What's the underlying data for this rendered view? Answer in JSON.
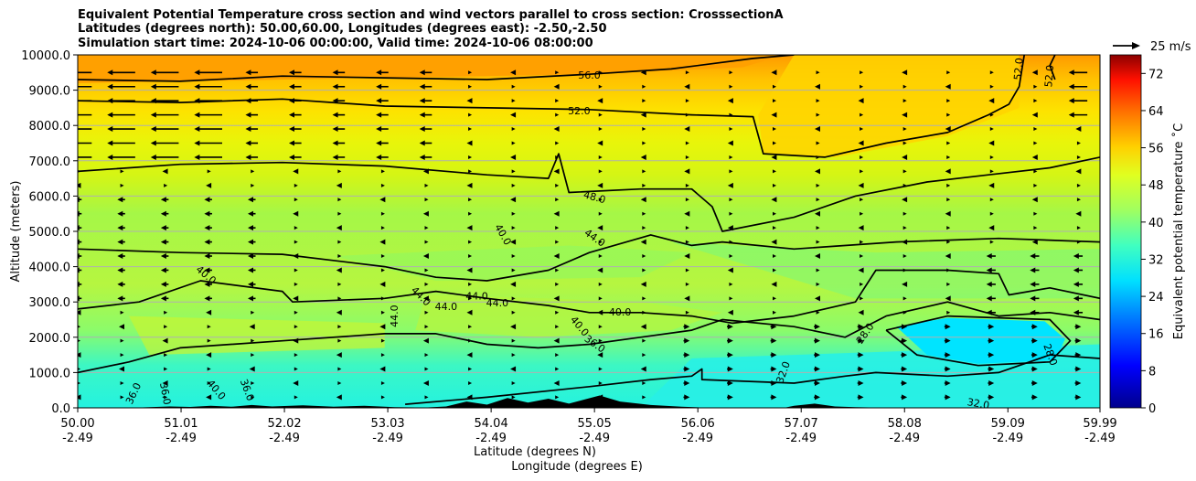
{
  "chart_data": {
    "type": "heatmap",
    "title": [
      "Equivalent Potential Temperature cross section and wind vectors parallel to cross section: CrosssectionA",
      "Latitudes (degrees north): 50.00,60.00, Longitudes (degrees east): -2.50,-2.50",
      "Simulation start time: 2024-10-06 00:00:00, Valid time: 2024-10-06 08:00:00"
    ],
    "ylabel": "Altitude (meters)",
    "xlabel": [
      "Latitude (degrees N)",
      "Longitude (degrees E)"
    ],
    "x_ticks": [
      {
        "lat": "50.00",
        "lon": "-2.49",
        "value": 50.0
      },
      {
        "lat": "51.01",
        "lon": "-2.49",
        "value": 51.01
      },
      {
        "lat": "52.02",
        "lon": "-2.49",
        "value": 52.02
      },
      {
        "lat": "53.03",
        "lon": "-2.49",
        "value": 53.03
      },
      {
        "lat": "54.04",
        "lon": "-2.49",
        "value": 54.04
      },
      {
        "lat": "55.05",
        "lon": "-2.49",
        "value": 55.05
      },
      {
        "lat": "56.06",
        "lon": "-2.49",
        "value": 56.06
      },
      {
        "lat": "57.07",
        "lon": "-2.49",
        "value": 57.07
      },
      {
        "lat": "58.08",
        "lon": "-2.49",
        "value": 58.08
      },
      {
        "lat": "59.09",
        "lon": "-2.49",
        "value": 59.09
      },
      {
        "lat": "59.99",
        "lon": "-2.49",
        "value": 59.99
      }
    ],
    "y_ticks": [
      "0.0",
      "1000.0",
      "2000.0",
      "3000.0",
      "4000.0",
      "5000.0",
      "6000.0",
      "7000.0",
      "8000.0",
      "9000.0",
      "10000.0"
    ],
    "xlim": [
      50.0,
      59.99
    ],
    "ylim": [
      0,
      10000
    ],
    "grid": "horizontal",
    "colorbar": {
      "label": "Equivalent potential temperature ˚C",
      "min": 0,
      "max": 76,
      "ticks": [
        "0",
        "8",
        "16",
        "24",
        "32",
        "40",
        "48",
        "56",
        "64",
        "72"
      ]
    },
    "quiver_key": {
      "label": "25 m/s",
      "value": 25
    },
    "contours": [
      {
        "level": 56.0,
        "label": "56.0",
        "points": [
          [
            50.0,
            9300
          ],
          [
            51.0,
            9250
          ],
          [
            52.0,
            9400
          ],
          [
            53.0,
            9350
          ],
          [
            54.0,
            9300
          ],
          [
            55.0,
            9450
          ],
          [
            55.8,
            9600
          ],
          [
            56.6,
            9900
          ],
          [
            57.0,
            10000
          ]
        ]
      },
      {
        "level": 52.0,
        "label": "52.0",
        "points": [
          [
            50.0,
            8700
          ],
          [
            51.0,
            8650
          ],
          [
            52.0,
            8750
          ],
          [
            53.0,
            8550
          ],
          [
            54.0,
            8500
          ],
          [
            55.0,
            8450
          ],
          [
            56.0,
            8300
          ],
          [
            56.6,
            8250
          ],
          [
            56.7,
            7200
          ],
          [
            57.3,
            7100
          ],
          [
            57.9,
            7500
          ],
          [
            58.5,
            7800
          ],
          [
            58.9,
            8300
          ],
          [
            59.1,
            8600
          ],
          [
            59.2,
            9100
          ],
          [
            59.25,
            10000
          ]
        ]
      },
      {
        "level": 52.0,
        "label": "52.0",
        "points": [
          [
            59.55,
            10000
          ],
          [
            59.5,
            9700
          ],
          [
            59.55,
            9300
          ]
        ]
      },
      {
        "level": 48.0,
        "label": "48.0",
        "points": [
          [
            50.0,
            6700
          ],
          [
            51.0,
            6900
          ],
          [
            52.0,
            6950
          ],
          [
            53.0,
            6850
          ],
          [
            54.0,
            6600
          ],
          [
            54.6,
            6500
          ],
          [
            54.7,
            7200
          ],
          [
            54.8,
            6100
          ],
          [
            55.5,
            6200
          ],
          [
            56.0,
            6200
          ],
          [
            56.2,
            5700
          ],
          [
            56.3,
            5000
          ],
          [
            57.0,
            5400
          ],
          [
            57.6,
            6000
          ],
          [
            58.3,
            6400
          ],
          [
            58.9,
            6600
          ],
          [
            59.5,
            6800
          ],
          [
            59.99,
            7100
          ]
        ]
      },
      {
        "level": 44.0,
        "label": "44.0",
        "points": [
          [
            50.0,
            4500
          ],
          [
            51.0,
            4400
          ],
          [
            52.0,
            4350
          ],
          [
            53.0,
            4000
          ],
          [
            53.5,
            3700
          ],
          [
            54.0,
            3600
          ],
          [
            54.6,
            3900
          ],
          [
            55.0,
            4400
          ],
          [
            55.6,
            4900
          ],
          [
            56.0,
            4600
          ],
          [
            56.3,
            4700
          ],
          [
            57.0,
            4500
          ],
          [
            58.0,
            4700
          ],
          [
            59.0,
            4800
          ],
          [
            59.99,
            4700
          ]
        ]
      },
      {
        "level": 40.0,
        "label": "40.0",
        "points": [
          [
            50.0,
            2800
          ],
          [
            50.6,
            3000
          ],
          [
            51.2,
            3600
          ],
          [
            52.0,
            3300
          ],
          [
            52.1,
            3000
          ],
          [
            53.0,
            3100
          ],
          [
            53.5,
            3300
          ],
          [
            54.0,
            3100
          ],
          [
            54.6,
            2900
          ],
          [
            55.0,
            2700
          ],
          [
            55.5,
            2700
          ],
          [
            56.0,
            2600
          ],
          [
            56.4,
            2400
          ],
          [
            57.0,
            2600
          ],
          [
            57.6,
            3000
          ],
          [
            57.8,
            3900
          ],
          [
            58.5,
            3900
          ],
          [
            59.0,
            3800
          ],
          [
            59.1,
            3200
          ],
          [
            59.5,
            3400
          ],
          [
            59.99,
            3100
          ]
        ]
      },
      {
        "level": 36.0,
        "label": "36.0",
        "points": [
          [
            50.0,
            1000
          ],
          [
            50.5,
            1300
          ],
          [
            51.0,
            1700
          ],
          [
            52.0,
            1900
          ],
          [
            53.0,
            2100
          ],
          [
            53.5,
            2100
          ],
          [
            54.0,
            1800
          ],
          [
            54.5,
            1700
          ],
          [
            55.0,
            1800
          ],
          [
            55.5,
            2000
          ],
          [
            56.0,
            2200
          ],
          [
            56.3,
            2500
          ],
          [
            57.0,
            2300
          ],
          [
            57.5,
            2000
          ],
          [
            57.9,
            2600
          ],
          [
            58.5,
            3000
          ],
          [
            59.0,
            2600
          ],
          [
            59.5,
            2700
          ],
          [
            59.99,
            2500
          ]
        ]
      },
      {
        "level": 32.0,
        "label": "32.0",
        "points": [
          [
            53.2,
            100
          ],
          [
            54.0,
            300
          ],
          [
            55.0,
            600
          ],
          [
            55.6,
            800
          ],
          [
            56.0,
            900
          ],
          [
            56.1,
            1100
          ],
          [
            56.1,
            800
          ],
          [
            57.0,
            700
          ],
          [
            57.5,
            900
          ],
          [
            57.8,
            1000
          ],
          [
            58.5,
            900
          ],
          [
            59.0,
            1000
          ],
          [
            59.5,
            1500
          ],
          [
            59.99,
            1400
          ]
        ]
      },
      {
        "level": 28.0,
        "label": "28.0",
        "points": [
          [
            57.9,
            2200
          ],
          [
            58.2,
            1500
          ],
          [
            58.8,
            1200
          ],
          [
            59.5,
            1300
          ],
          [
            59.7,
            1900
          ],
          [
            59.5,
            2500
          ],
          [
            58.5,
            2600
          ],
          [
            57.9,
            2200
          ]
        ]
      }
    ],
    "contour_labels": [
      {
        "text": "56.0",
        "x": 55.0,
        "y": 9400,
        "rot": 0
      },
      {
        "text": "52.0",
        "x": 54.9,
        "y": 8400,
        "rot": 0
      },
      {
        "text": "52.0",
        "x": 59.5,
        "y": 9400,
        "rot": 85
      },
      {
        "text": "52.0",
        "x": 59.2,
        "y": 9600,
        "rot": 85
      },
      {
        "text": "48.0",
        "x": 55.05,
        "y": 5950,
        "rot": -15
      },
      {
        "text": "44.0",
        "x": 55.05,
        "y": 4800,
        "rot": -35
      },
      {
        "text": "40.0",
        "x": 54.15,
        "y": 4900,
        "rot": -60
      },
      {
        "text": "40.0",
        "x": 51.25,
        "y": 3750,
        "rot": -40
      },
      {
        "text": "44.0",
        "x": 53.35,
        "y": 3150,
        "rot": -45
      },
      {
        "text": "44.0",
        "x": 53.6,
        "y": 2850,
        "rot": 0
      },
      {
        "text": "44.0",
        "x": 53.9,
        "y": 3150,
        "rot": 0
      },
      {
        "text": "44.0",
        "x": 54.1,
        "y": 2950,
        "rot": 0
      },
      {
        "text": "44.0",
        "x": 53.1,
        "y": 2600,
        "rot": 90
      },
      {
        "text": "40.0",
        "x": 55.3,
        "y": 2700,
        "rot": 0
      },
      {
        "text": "40.0",
        "x": 54.9,
        "y": 2300,
        "rot": -50
      },
      {
        "text": "36.0",
        "x": 55.05,
        "y": 1800,
        "rot": -35
      },
      {
        "text": "28.0",
        "x": 57.7,
        "y": 2100,
        "rot": 55
      },
      {
        "text": "28.0",
        "x": 59.5,
        "y": 1500,
        "rot": -70
      },
      {
        "text": "32.0",
        "x": 56.9,
        "y": 1000,
        "rot": 70
      },
      {
        "text": "32.0",
        "x": 58.8,
        "y": 100,
        "rot": -10
      },
      {
        "text": "36.0",
        "x": 50.55,
        "y": 400,
        "rot": 65
      },
      {
        "text": "36.0",
        "x": 50.85,
        "y": 400,
        "rot": -80
      },
      {
        "text": "40.0",
        "x": 51.35,
        "y": 500,
        "rot": -50
      },
      {
        "text": "36.0",
        "x": 51.65,
        "y": 500,
        "rot": -70
      }
    ]
  }
}
